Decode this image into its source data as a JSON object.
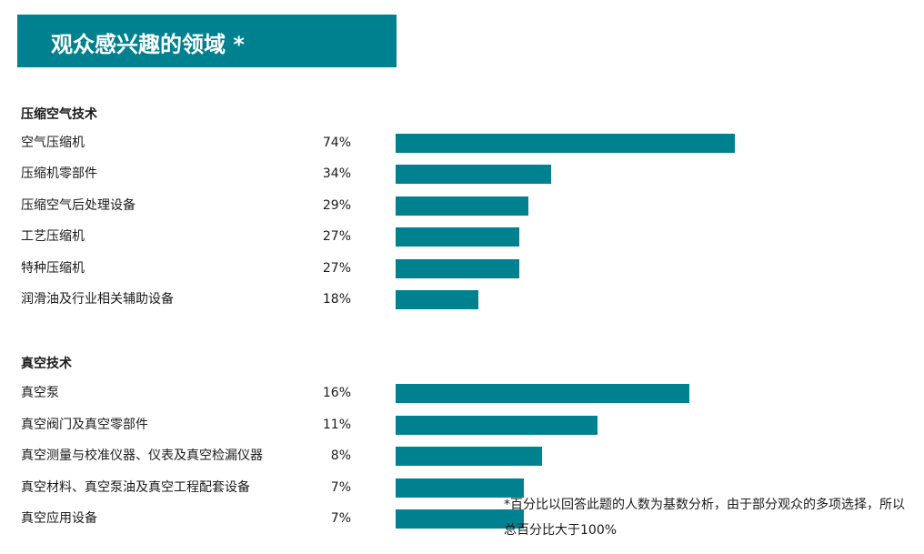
{
  "title": "观众感兴趣的领域 *",
  "footnote": "*百分比以回答此题的人数为基数分析，由于部分观众的多项选择，所以总百分比大于100%",
  "colors": {
    "accent": "#00818f",
    "bar": "#00818f",
    "text": "#1a1a1a"
  },
  "chart_data": {
    "type": "bar",
    "orientation": "horizontal",
    "unit": "%",
    "groups": [
      {
        "heading": "压缩空气技术",
        "categories": [
          "空气压缩机",
          "压缩机零部件",
          "压缩空气后处理设备",
          "工艺压缩机",
          "特种压缩机",
          "润滑油及行业相关辅助设备"
        ],
        "values": [
          74,
          34,
          29,
          27,
          27,
          18
        ],
        "labels": [
          "74%",
          "34%",
          "29%",
          "27%",
          "27%",
          "18%"
        ],
        "xlim": [
          0,
          74
        ]
      },
      {
        "heading": "真空技术",
        "categories": [
          "真空泵",
          "真空阀门及真空零部件",
          "真空测量与校准仪器、仪表及真空检漏仪器",
          "真空材料、真空泵油及真空工程配套设备",
          "真空应用设备"
        ],
        "values": [
          16,
          11,
          8,
          7,
          7
        ],
        "labels": [
          "16%",
          "11%",
          "8%",
          "7%",
          "7%"
        ],
        "xlim": [
          0,
          18.5
        ]
      }
    ]
  }
}
